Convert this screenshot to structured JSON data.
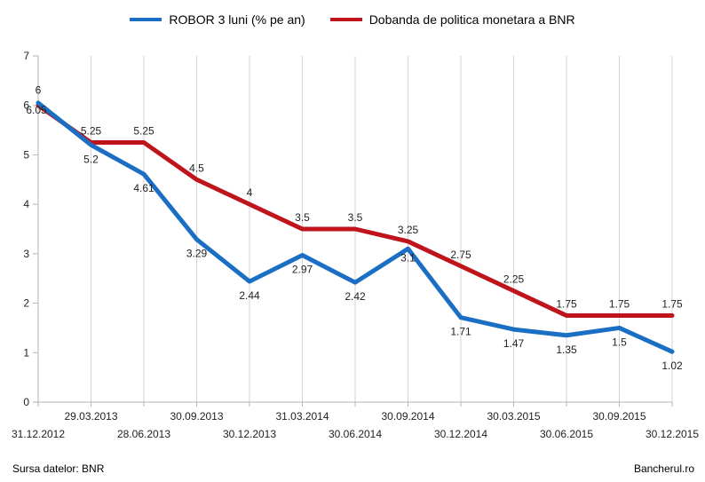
{
  "footer": {
    "source": "Sursa datelor: BNR",
    "brand": "Bancherul.ro"
  },
  "chart_data": {
    "type": "line",
    "categories": [
      "31.12.2012",
      "29.03.2013",
      "28.06.2013",
      "30.09.2013",
      "30.12.2013",
      "31.03.2014",
      "30.06.2014",
      "30.09.2014",
      "30.12.2014",
      "30.03.2015",
      "30.06.2015",
      "30.09.2015",
      "30.12.2015"
    ],
    "series": [
      {
        "name": "ROBOR 3 luni (% pe an)",
        "color": "#1a6fc4",
        "values": [
          6.05,
          5.2,
          4.61,
          3.29,
          2.44,
          2.97,
          2.42,
          3.1,
          1.71,
          1.47,
          1.35,
          1.5,
          1.02
        ]
      },
      {
        "name": "Dobanda de politica monetara a BNR",
        "color": "#c0141c",
        "values": [
          6,
          5.25,
          5.25,
          4.5,
          4,
          3.5,
          3.5,
          3.25,
          2.75,
          2.25,
          1.75,
          1.75,
          1.75
        ]
      }
    ],
    "yticks": [
      0,
      1,
      2,
      3,
      4,
      5,
      6,
      7
    ],
    "ylim": [
      0,
      7
    ],
    "grid": "vertical",
    "legend": "top-center"
  }
}
